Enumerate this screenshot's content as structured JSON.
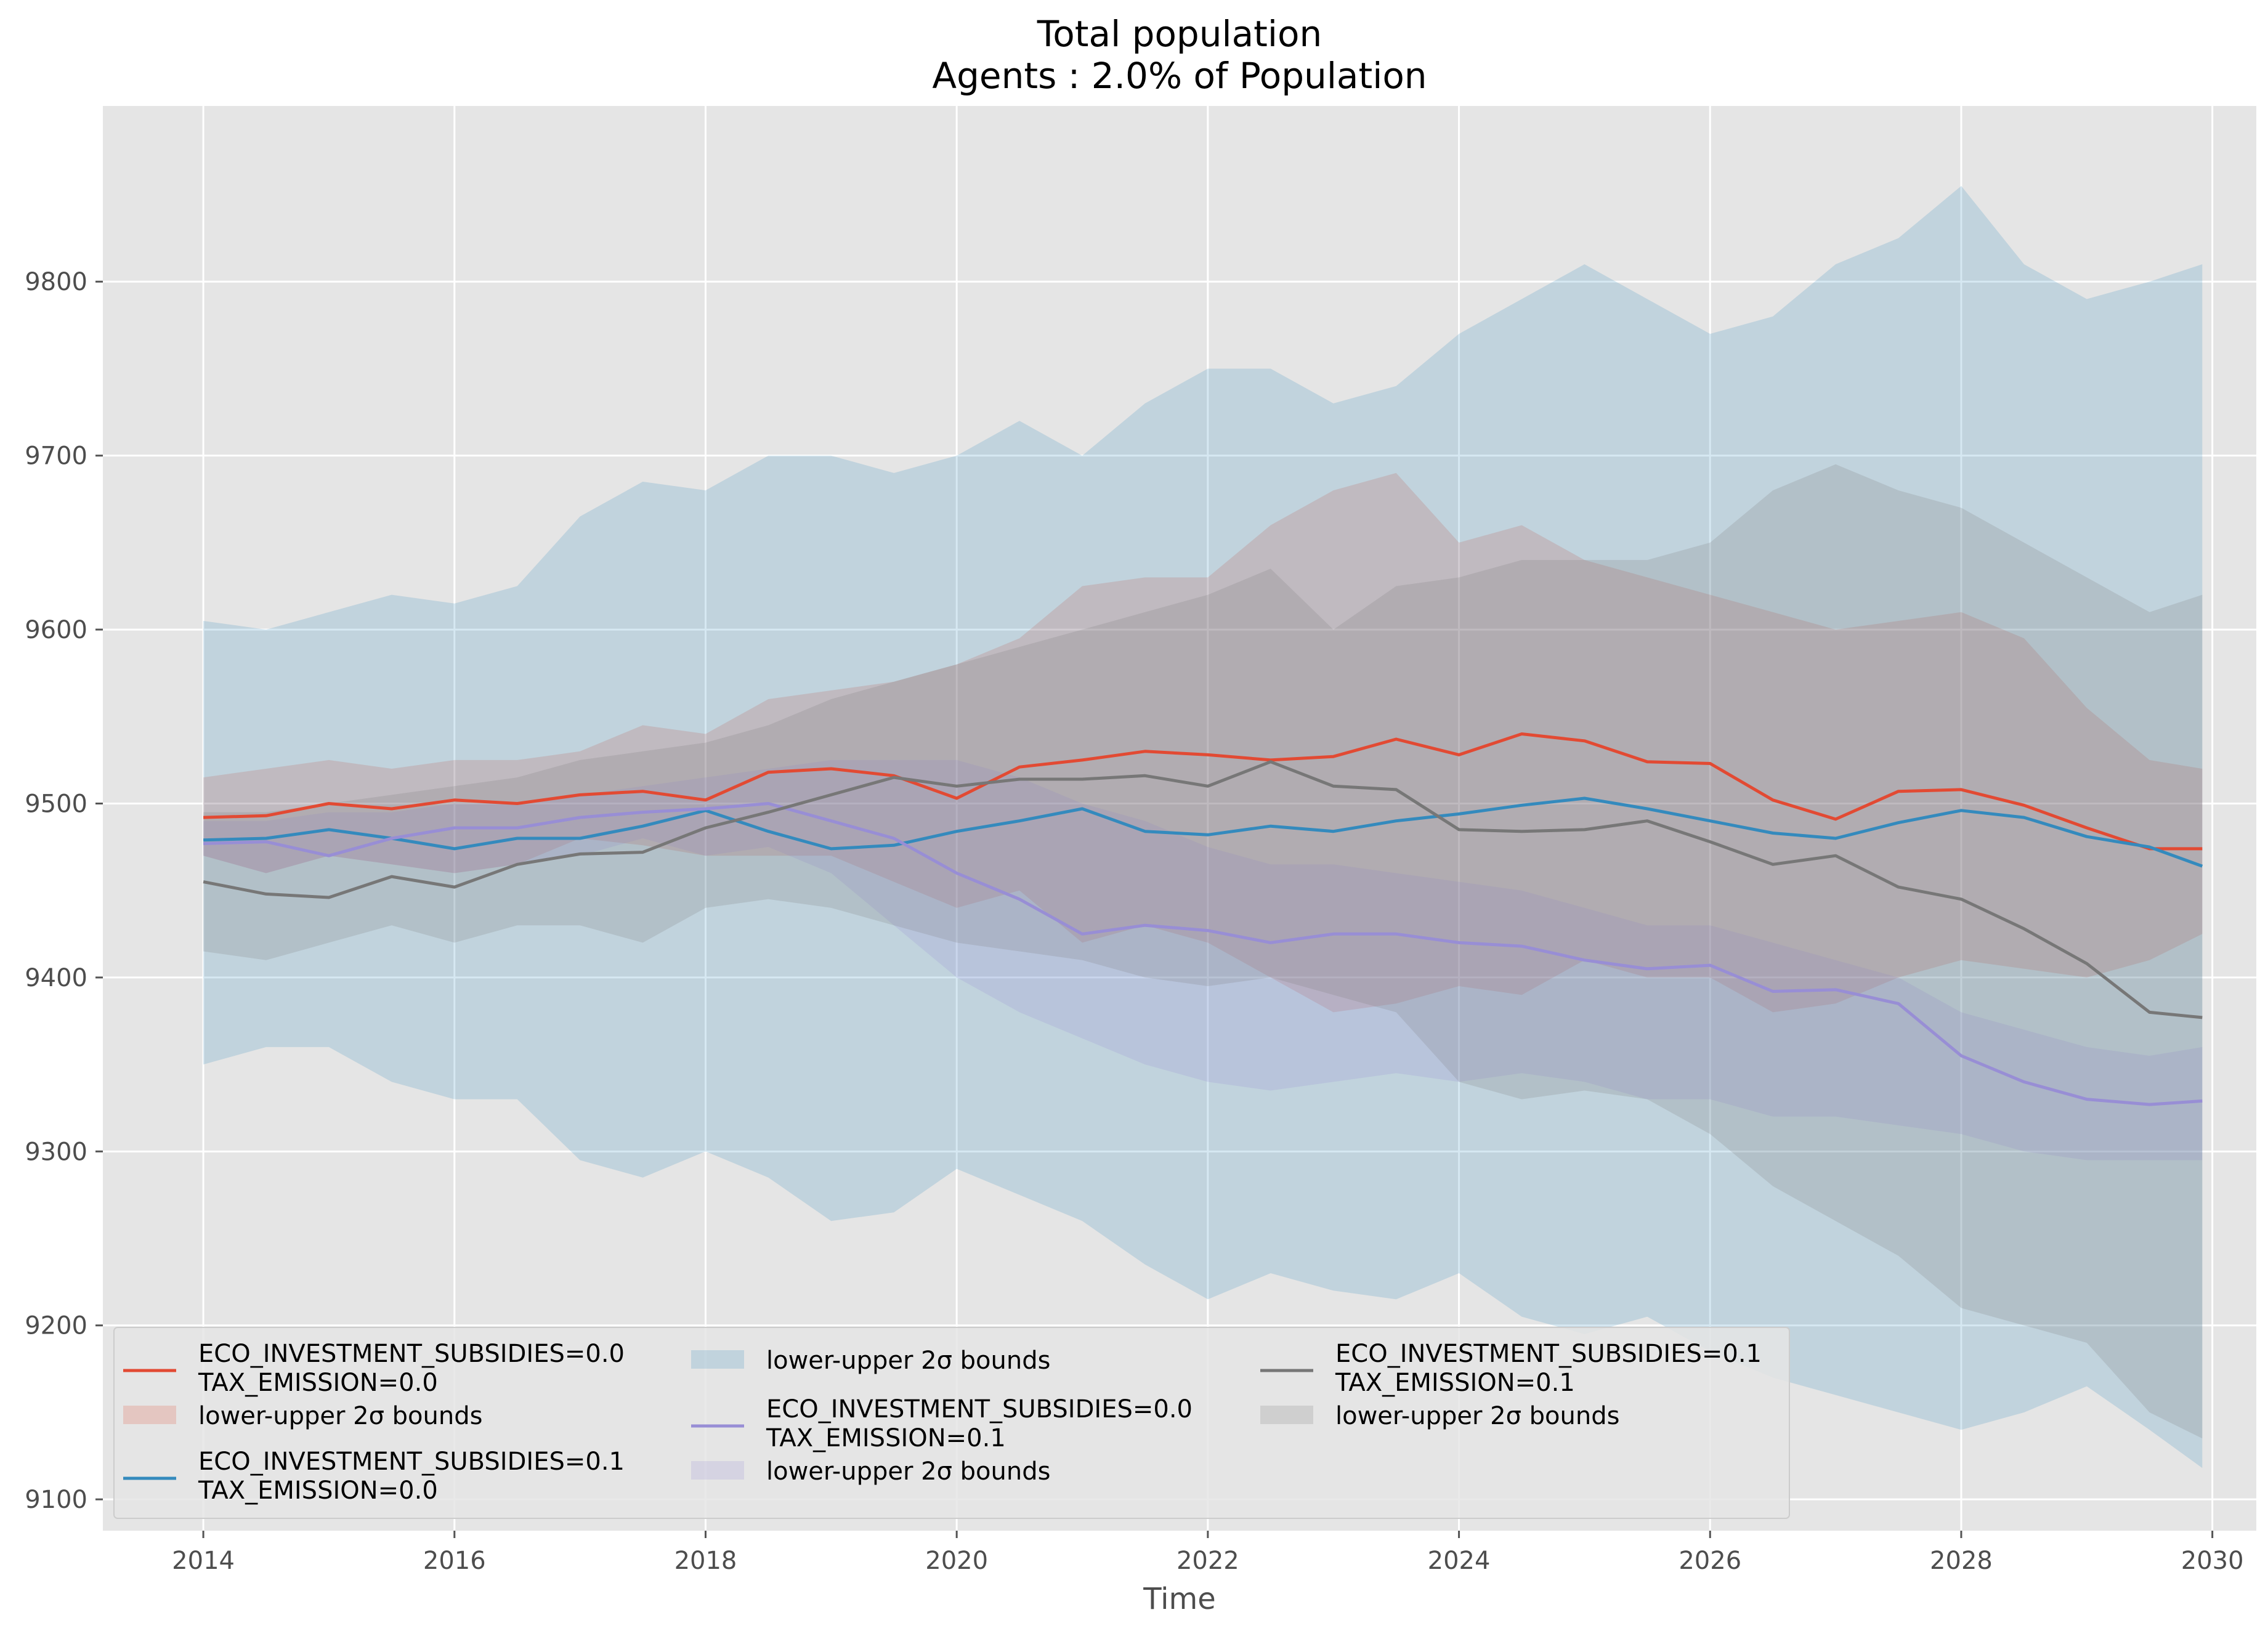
{
  "chart_data": {
    "type": "line",
    "title": "Total population",
    "subtitle": "Agents : 2.0% of Population",
    "xlabel": "Time",
    "ylabel": "",
    "xlim": [
      2013.2,
      2030.35
    ],
    "ylim": [
      9082,
      9901
    ],
    "x_ticks": [
      2014,
      2016,
      2018,
      2020,
      2022,
      2024,
      2026,
      2028,
      2030
    ],
    "y_ticks": [
      9100,
      9200,
      9300,
      9400,
      9500,
      9600,
      9700,
      9800
    ],
    "grid": true,
    "style": "ggplot",
    "legend_position": "lower-left",
    "legend_columns": 3,
    "band_label": "lower-upper 2σ bounds",
    "series": [
      {
        "name_lines": [
          "ECO_INVESTMENT_SUBSIDIES=0.0",
          "TAX_EMISSION=0.0"
        ],
        "color": "#E24A33",
        "x": [
          2014.0,
          2014.5,
          2015.0,
          2015.5,
          2016.0,
          2016.5,
          2017.0,
          2017.5,
          2018.0,
          2018.5,
          2019.0,
          2019.5,
          2020.0,
          2020.5,
          2021.0,
          2021.5,
          2022.0,
          2022.5,
          2023.0,
          2023.5,
          2024.0,
          2024.5,
          2025.0,
          2025.5,
          2026.0,
          2026.5,
          2027.0,
          2027.5,
          2028.0,
          2028.5,
          2029.0,
          2029.5,
          2029.92
        ],
        "mean": [
          9492,
          9493,
          9500,
          9497,
          9502,
          9500,
          9505,
          9507,
          9502,
          9518,
          9520,
          9516,
          9503,
          9521,
          9525,
          9530,
          9528,
          9525,
          9527,
          9537,
          9528,
          9540,
          9536,
          9524,
          9523,
          9502,
          9491,
          9507,
          9508,
          9499,
          9486,
          9474,
          9474
        ],
        "lower": [
          9470,
          9460,
          9470,
          9465,
          9460,
          9465,
          9480,
          9476,
          9470,
          9470,
          9470,
          9455,
          9440,
          9450,
          9420,
          9430,
          9420,
          9400,
          9380,
          9385,
          9395,
          9390,
          9410,
          9400,
          9400,
          9380,
          9385,
          9400,
          9410,
          9405,
          9400,
          9410,
          9425
        ],
        "upper": [
          9515,
          9520,
          9525,
          9520,
          9525,
          9525,
          9530,
          9545,
          9540,
          9560,
          9565,
          9570,
          9580,
          9595,
          9625,
          9630,
          9630,
          9660,
          9680,
          9690,
          9650,
          9660,
          9640,
          9630,
          9620,
          9610,
          9600,
          9605,
          9610,
          9595,
          9555,
          9525,
          9520
        ]
      },
      {
        "name_lines": [
          "ECO_INVESTMENT_SUBSIDIES=0.1",
          "TAX_EMISSION=0.0"
        ],
        "color": "#348ABD",
        "x": [
          2014.0,
          2014.5,
          2015.0,
          2015.5,
          2016.0,
          2016.5,
          2017.0,
          2017.5,
          2018.0,
          2018.5,
          2019.0,
          2019.5,
          2020.0,
          2020.5,
          2021.0,
          2021.5,
          2022.0,
          2022.5,
          2023.0,
          2023.5,
          2024.0,
          2024.5,
          2025.0,
          2025.5,
          2026.0,
          2026.5,
          2027.0,
          2027.5,
          2028.0,
          2028.5,
          2029.0,
          2029.5,
          2029.92
        ],
        "mean": [
          9479,
          9480,
          9485,
          9480,
          9474,
          9480,
          9480,
          9487,
          9496,
          9484,
          9474,
          9476,
          9484,
          9490,
          9497,
          9484,
          9482,
          9487,
          9484,
          9490,
          9494,
          9499,
          9503,
          9497,
          9490,
          9483,
          9480,
          9489,
          9496,
          9492,
          9481,
          9475,
          9464
        ],
        "lower": [
          9350,
          9360,
          9360,
          9340,
          9330,
          9330,
          9295,
          9285,
          9300,
          9285,
          9260,
          9265,
          9290,
          9275,
          9260,
          9235,
          9215,
          9230,
          9220,
          9215,
          9230,
          9205,
          9195,
          9205,
          9185,
          9170,
          9160,
          9150,
          9140,
          9150,
          9165,
          9140,
          9118
        ],
        "upper": [
          9605,
          9600,
          9610,
          9620,
          9615,
          9625,
          9665,
          9685,
          9680,
          9700,
          9700,
          9690,
          9700,
          9720,
          9700,
          9730,
          9750,
          9750,
          9730,
          9740,
          9770,
          9790,
          9810,
          9790,
          9770,
          9780,
          9810,
          9825,
          9855,
          9810,
          9790,
          9800,
          9810
        ]
      },
      {
        "name_lines": [
          "ECO_INVESTMENT_SUBSIDIES=0.0",
          "TAX_EMISSION=0.1"
        ],
        "color": "#988ED5",
        "x": [
          2014.0,
          2014.5,
          2015.0,
          2015.5,
          2016.0,
          2016.5,
          2017.0,
          2017.5,
          2018.0,
          2018.5,
          2019.0,
          2019.5,
          2020.0,
          2020.5,
          2021.0,
          2021.5,
          2022.0,
          2022.5,
          2023.0,
          2023.5,
          2024.0,
          2024.5,
          2025.0,
          2025.5,
          2026.0,
          2026.5,
          2027.0,
          2027.5,
          2028.0,
          2028.5,
          2029.0,
          2029.5,
          2029.92
        ],
        "mean": [
          9477,
          9478,
          9470,
          9480,
          9486,
          9486,
          9492,
          9495,
          9497,
          9500,
          9490,
          9480,
          9460,
          9445,
          9425,
          9430,
          9427,
          9420,
          9425,
          9425,
          9420,
          9418,
          9410,
          9405,
          9407,
          9392,
          9393,
          9385,
          9355,
          9340,
          9330,
          9327,
          9329
        ],
        "lower": [
          9470,
          9460,
          9470,
          9465,
          9460,
          9465,
          9470,
          9480,
          9470,
          9475,
          9460,
          9430,
          9400,
          9380,
          9365,
          9350,
          9340,
          9335,
          9340,
          9345,
          9340,
          9345,
          9340,
          9330,
          9330,
          9320,
          9320,
          9315,
          9310,
          9300,
          9295,
          9295,
          9295
        ],
        "upper": [
          9490,
          9490,
          9495,
          9495,
          9500,
          9500,
          9505,
          9510,
          9515,
          9520,
          9525,
          9525,
          9525,
          9515,
          9500,
          9490,
          9475,
          9465,
          9465,
          9460,
          9455,
          9450,
          9440,
          9430,
          9430,
          9420,
          9410,
          9400,
          9380,
          9370,
          9360,
          9355,
          9360
        ]
      },
      {
        "name_lines": [
          "ECO_INVESTMENT_SUBSIDIES=0.1",
          "TAX_EMISSION=0.1"
        ],
        "color": "#777777",
        "x": [
          2014.0,
          2014.5,
          2015.0,
          2015.5,
          2016.0,
          2016.5,
          2017.0,
          2017.5,
          2018.0,
          2018.5,
          2019.0,
          2019.5,
          2020.0,
          2020.5,
          2021.0,
          2021.5,
          2022.0,
          2022.5,
          2023.0,
          2023.5,
          2024.0,
          2024.5,
          2025.0,
          2025.5,
          2026.0,
          2026.5,
          2027.0,
          2027.5,
          2028.0,
          2028.5,
          2029.0,
          2029.5,
          2029.92
        ],
        "mean": [
          9455,
          9448,
          9446,
          9458,
          9452,
          9465,
          9471,
          9472,
          9486,
          9495,
          9505,
          9515,
          9510,
          9514,
          9514,
          9516,
          9510,
          9524,
          9510,
          9508,
          9485,
          9484,
          9485,
          9490,
          9478,
          9465,
          9470,
          9452,
          9445,
          9428,
          9408,
          9380,
          9377
        ],
        "lower": [
          9415,
          9410,
          9420,
          9430,
          9420,
          9430,
          9430,
          9420,
          9440,
          9445,
          9440,
          9430,
          9420,
          9415,
          9410,
          9400,
          9395,
          9400,
          9390,
          9380,
          9340,
          9330,
          9335,
          9330,
          9310,
          9280,
          9260,
          9240,
          9210,
          9200,
          9190,
          9150,
          9135
        ],
        "upper": [
          9495,
          9495,
          9500,
          9505,
          9510,
          9515,
          9525,
          9530,
          9535,
          9545,
          9560,
          9570,
          9580,
          9590,
          9600,
          9610,
          9620,
          9635,
          9600,
          9625,
          9630,
          9640,
          9640,
          9640,
          9650,
          9680,
          9695,
          9680,
          9670,
          9650,
          9630,
          9610,
          9620
        ]
      }
    ]
  }
}
